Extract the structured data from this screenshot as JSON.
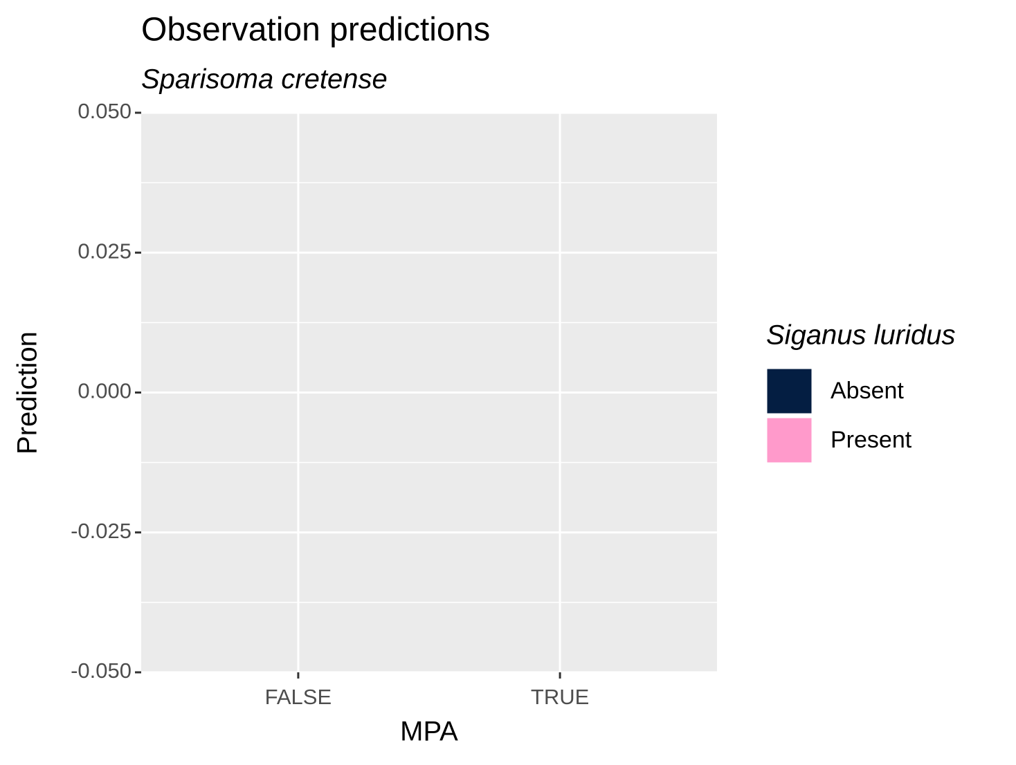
{
  "chart_data": {
    "type": "bar",
    "title": "Observation predictions",
    "subtitle": "Sparisoma cretense",
    "x_label": "MPA",
    "y_label": "Prediction",
    "legend_title": "Siganus luridus",
    "legend_position": "right",
    "categories": [
      "FALSE",
      "TRUE"
    ],
    "series": [
      {
        "name": "Absent",
        "color": "#041e42",
        "values": [
          0,
          0
        ]
      },
      {
        "name": "Present",
        "color": "#ff9acb",
        "values": [
          0,
          0
        ]
      }
    ],
    "ylim": [
      -0.05,
      0.05
    ],
    "yticks": [
      {
        "value": -0.05,
        "label": "-0.050"
      },
      {
        "value": -0.025,
        "label": "-0.025"
      },
      {
        "value": 0,
        "label": "0.000"
      },
      {
        "value": 0.025,
        "label": "0.025"
      },
      {
        "value": 0.05,
        "label": "0.050"
      }
    ],
    "grid": true
  }
}
